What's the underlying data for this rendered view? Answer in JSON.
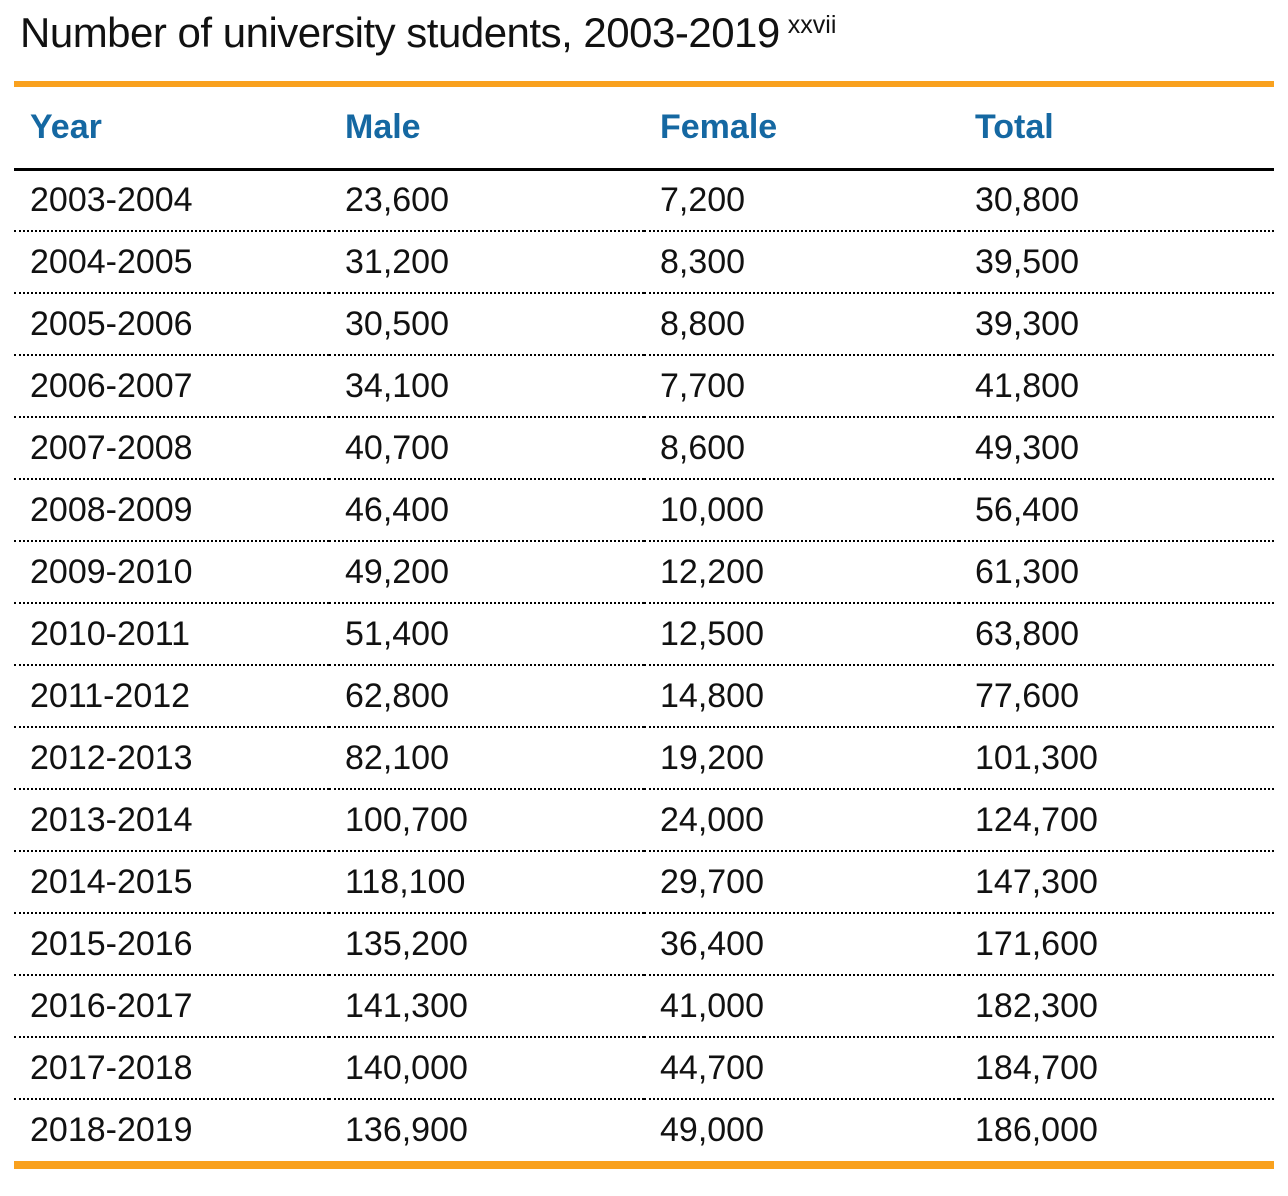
{
  "title": {
    "text": "Number of university students, 2003-2019",
    "footnote_ref": "xxvii"
  },
  "colors": {
    "accent_orange": "#F9A11E",
    "header_blue": "#1568A2"
  },
  "table": {
    "headers": [
      "Year",
      "Male",
      "Female",
      "Total"
    ],
    "rows": [
      {
        "year": "2003-2004",
        "male": "23,600",
        "female": "7,200",
        "total": "30,800"
      },
      {
        "year": "2004-2005",
        "male": "31,200",
        "female": "8,300",
        "total": "39,500"
      },
      {
        "year": "2005-2006",
        "male": "30,500",
        "female": "8,800",
        "total": "39,300"
      },
      {
        "year": "2006-2007",
        "male": "34,100",
        "female": "7,700",
        "total": "41,800"
      },
      {
        "year": "2007-2008",
        "male": "40,700",
        "female": "8,600",
        "total": "49,300"
      },
      {
        "year": "2008-2009",
        "male": "46,400",
        "female": "10,000",
        "total": "56,400"
      },
      {
        "year": "2009-2010",
        "male": "49,200",
        "female": "12,200",
        "total": "61,300"
      },
      {
        "year": "2010-2011",
        "male": "51,400",
        "female": "12,500",
        "total": "63,800"
      },
      {
        "year": "2011-2012",
        "male": "62,800",
        "female": "14,800",
        "total": "77,600"
      },
      {
        "year": "2012-2013",
        "male": "82,100",
        "female": "19,200",
        "total": "101,300"
      },
      {
        "year": "2013-2014",
        "male": "100,700",
        "female": "24,000",
        "total": "124,700"
      },
      {
        "year": "2014-2015",
        "male": "118,100",
        "female": "29,700",
        "total": "147,300"
      },
      {
        "year": "2015-2016",
        "male": "135,200",
        "female": "36,400",
        "total": "171,600"
      },
      {
        "year": "2016-2017",
        "male": "141,300",
        "female": "41,000",
        "total": "182,300"
      },
      {
        "year": "2017-2018",
        "male": "140,000",
        "female": "44,700",
        "total": "184,700"
      },
      {
        "year": "2018-2019",
        "male": "136,900",
        "female": "49,000",
        "total": "186,000"
      }
    ]
  }
}
